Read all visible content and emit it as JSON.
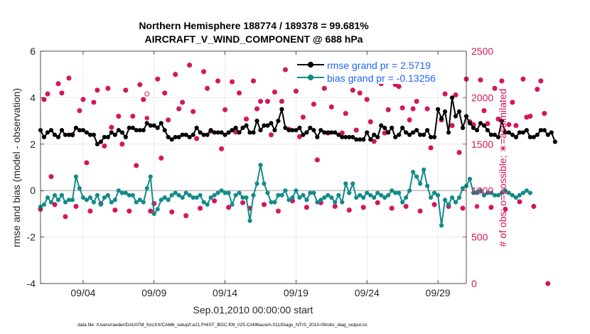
{
  "chart_data": {
    "type": "line",
    "title_line1": "Northern Hemisphere 188774 / 189378 = 99.681%",
    "title_line2": "AIRCRAFT_V_WIND_COMPONENT @ 688 hPa",
    "xlabel": "Sep.01,2010 00:00:00 start",
    "ylabel_left": "rmse and bias (model - observation)",
    "ylabel_right": "# of obs: o=possible; ∗=assimilated",
    "footer": "data file: /Users/raeder/DAI/ATM_forcXX/CAM6_setup/f.e21.FHIST_BGC.f09_025.CAM6assim.011/Diags_NTrS_2010-09/obs_diag_output.nc",
    "xlim_days": [
      0.5,
      30.5
    ],
    "ylim_left": [
      -4,
      6
    ],
    "ylim_right": [
      0,
      2500
    ],
    "x_ticks": [
      {
        "day": 3.5,
        "label": "09/04"
      },
      {
        "day": 8.5,
        "label": "09/09"
      },
      {
        "day": 13.5,
        "label": "09/14"
      },
      {
        "day": 18.5,
        "label": "09/19"
      },
      {
        "day": 23.5,
        "label": "09/24"
      },
      {
        "day": 28.5,
        "label": "09/29"
      }
    ],
    "y_ticks_left": [
      -4,
      -2,
      0,
      2,
      4,
      6
    ],
    "y_ticks_right": [
      0,
      500,
      1000,
      1500,
      2000,
      2500
    ],
    "colors": {
      "rmse": "#000000",
      "bias": "#128b8a",
      "obs": "#d2145a",
      "zero_line": "#bdbdbd"
    },
    "legend": [
      {
        "label": "rmse grand pr = 2.5719",
        "series": "rmse"
      },
      {
        "label": "bias grand pr = -0.13256",
        "series": "bias"
      }
    ],
    "series": [
      {
        "name": "rmse",
        "start_day": 0.5,
        "step_days": 0.25,
        "values": [
          2.6,
          2.3,
          2.5,
          2.6,
          2.4,
          2.3,
          2.6,
          2.4,
          2.4,
          2.4,
          2.7,
          2.6,
          2.6,
          2.5,
          2.4,
          2.4,
          2.0,
          2.1,
          2.3,
          2.3,
          2.5,
          2.4,
          2.6,
          2.5,
          2.3,
          2.7,
          2.7,
          2.6,
          2.6,
          2.6,
          2.9,
          2.8,
          2.8,
          2.7,
          2.9,
          2.6,
          2.3,
          2.2,
          2.3,
          2.3,
          2.4,
          2.4,
          2.3,
          2.4,
          2.7,
          2.5,
          2.4,
          2.4,
          2.6,
          2.5,
          2.5,
          2.5,
          2.4,
          2.5,
          2.6,
          2.7,
          2.5,
          2.7,
          2.8,
          2.5,
          2.5,
          3.0,
          2.6,
          2.8,
          2.8,
          2.9,
          2.6,
          3.0,
          3.5,
          2.7,
          2.6,
          2.6,
          2.6,
          2.7,
          2.4,
          2.5,
          2.7,
          2.6,
          2.3,
          2.6,
          2.5,
          2.5,
          2.5,
          2.5,
          2.4,
          2.3,
          2.3,
          2.3,
          2.3,
          2.2,
          2.2,
          2.2,
          2.5,
          2.2,
          2.4,
          2.3,
          2.8,
          2.7,
          2.5,
          2.7,
          2.3,
          2.4,
          2.7,
          2.5,
          2.4,
          2.5,
          2.6,
          2.4,
          2.4,
          2.6,
          2.3,
          2.3,
          3.5,
          3.1,
          3.4,
          2.5,
          4.0,
          3.2,
          3.4,
          2.7,
          3.2,
          2.9,
          2.7,
          2.6,
          2.9,
          2.8,
          2.6,
          2.4,
          2.4,
          2.3,
          3.0,
          2.5,
          2.5,
          2.4,
          2.3,
          2.5,
          2.5,
          2.6,
          2.3,
          2.3,
          2.4,
          2.6,
          2.6,
          2.4,
          2.5,
          2.1
        ]
      },
      {
        "name": "bias",
        "start_day": 0.5,
        "step_days": 0.25,
        "values": [
          -0.7,
          -0.6,
          -0.3,
          -0.5,
          -0.2,
          -0.4,
          -0.2,
          -0.5,
          -0.4,
          -0.4,
          0.6,
          0.1,
          -0.3,
          -0.4,
          -0.3,
          -0.5,
          -0.2,
          -0.6,
          -0.3,
          -0.2,
          -0.5,
          -0.4,
          0.0,
          -0.1,
          -0.1,
          -0.2,
          -0.2,
          -0.5,
          -0.4,
          -0.5,
          0.1,
          0.6,
          -1.0,
          -0.8,
          -0.4,
          -0.3,
          -0.4,
          -0.2,
          -0.1,
          -0.2,
          -0.3,
          -0.1,
          -0.2,
          -0.3,
          -0.3,
          -0.2,
          -0.5,
          -0.6,
          -0.3,
          -0.2,
          -0.1,
          0.0,
          -0.1,
          -0.1,
          -0.6,
          -0.2,
          -0.1,
          -0.3,
          -0.3,
          -1.3,
          -0.2,
          0.3,
          1.1,
          0.3,
          -0.1,
          -0.5,
          -0.5,
          -0.2,
          -0.2,
          0.0,
          -0.4,
          -0.3,
          0.0,
          -0.3,
          -0.2,
          -0.4,
          -0.1,
          -0.1,
          -0.5,
          -0.4,
          -0.3,
          -0.2,
          -0.3,
          -0.5,
          -0.2,
          -0.5,
          0.3,
          -0.1,
          0.3,
          -0.3,
          -0.2,
          -0.3,
          -0.1,
          -0.2,
          -0.3,
          -0.1,
          -0.2,
          -0.3,
          -0.2,
          0.0,
          -0.1,
          -0.1,
          -0.5,
          -0.3,
          0.0,
          0.8,
          0.6,
          0.3,
          0.9,
          0.2,
          -0.3,
          -0.1,
          -0.2,
          -1.5,
          -0.4,
          -0.6,
          -0.3,
          -0.5,
          -0.3,
          0.1,
          0.2,
          0.5,
          -0.1,
          -0.1,
          0.0,
          -0.2,
          -0.1,
          -0.1,
          -0.2,
          -0.2,
          -0.1,
          0.0,
          -0.1,
          -0.2,
          -0.3,
          -0.2,
          -0.1,
          0.0,
          -0.1
        ]
      },
      {
        "name": "obs_assimilated",
        "start_day": 0.5,
        "step_days": 0.25,
        "values": [
          800,
          1980,
          2040,
          1150,
          850,
          2150,
          2050,
          720,
          2210,
          1600,
          830,
          1860,
          1980,
          1300,
          780,
          1950,
          2080,
          860,
          1480,
          2100,
          1680,
          790,
          1800,
          1500,
          2080,
          780,
          1800,
          1270,
          2140,
          1980,
          1780,
          780,
          860,
          2200,
          1350,
          2050,
          1760,
          770,
          2250,
          1880,
          1950,
          730,
          2350,
          1850,
          1560,
          810,
          2280,
          2100,
          1640,
          890,
          2180,
          1450,
          1870,
          820,
          2170,
          1630,
          2050,
          870,
          1770,
          810,
          2180,
          1880,
          1960,
          850,
          1960,
          1600,
          2060,
          780,
          1960,
          2300,
          1660,
          890,
          2070,
          1580,
          1790,
          820,
          2180,
          1930,
          1330,
          870,
          2100,
          1620,
          1900,
          830,
          2200,
          1620,
          1830,
          790,
          2080,
          1650,
          2050,
          820,
          1980,
          1740,
          1530,
          870,
          2150,
          1620,
          1870,
          810,
          2140,
          2120,
          1890,
          830,
          1760,
          1880,
          1960,
          780,
          2170,
          1880,
          1460,
          850,
          2200,
          1760,
          2040,
          830,
          1700,
          2030,
          1410,
          810,
          2200,
          1740,
          1710,
          830,
          2190,
          1860,
          1720,
          820,
          2100,
          1770,
          2180,
          800,
          1710,
          1950,
          1700,
          880,
          2200,
          1790,
          1800,
          830,
          2090,
          2180,
          1830,
          0
        ]
      },
      {
        "name": "obs_possible",
        "start_day": 0.5,
        "step_days": 0.25,
        "values": [
          800,
          1980,
          2040,
          1150,
          850,
          2150,
          2050,
          720,
          2210,
          1600,
          830,
          1860,
          1980,
          1300,
          780,
          1950,
          2080,
          860,
          1480,
          2100,
          1680,
          790,
          1800,
          1500,
          2080,
          780,
          1800,
          1270,
          2140,
          1980,
          2040,
          780,
          860,
          2200,
          1350,
          2050,
          1760,
          770,
          2250,
          1880,
          1950,
          730,
          2350,
          1850,
          1560,
          810,
          2280,
          2100,
          1640,
          890,
          2180,
          1450,
          1870,
          820,
          2170,
          1630,
          2050,
          870,
          1770,
          810,
          2180,
          1880,
          1960,
          850,
          1960,
          1600,
          2060,
          780,
          1960,
          2300,
          1660,
          890,
          2070,
          1580,
          1790,
          820,
          2180,
          1930,
          1330,
          870,
          2100,
          1620,
          1900,
          830,
          2200,
          1620,
          1830,
          790,
          2080,
          1650,
          2050,
          820,
          1980,
          1740,
          1530,
          870,
          2150,
          1620,
          1870,
          810,
          2140,
          2120,
          1890,
          830,
          1760,
          1880,
          1960,
          780,
          2170,
          1880,
          1460,
          850,
          2200,
          1760,
          2040,
          830,
          1700,
          2030,
          1410,
          810,
          2200,
          1740,
          1710,
          980,
          2190,
          1860,
          1720,
          820,
          2100,
          1770,
          2180,
          800,
          1710,
          1950,
          1700,
          880,
          2200,
          1790,
          1800,
          830,
          2090,
          2180,
          1830,
          0
        ]
      }
    ]
  }
}
